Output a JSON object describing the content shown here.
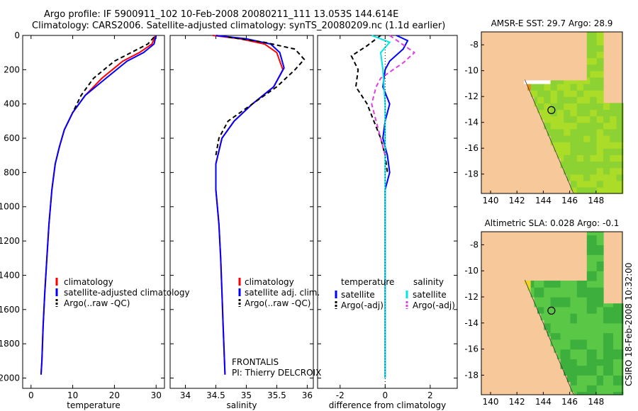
{
  "header": {
    "title_line1": "Argo profile: IF 5900911_102 10-Feb-2008 20080211_111 13.053S 144.614E",
    "title_line2": "Climatology: CARS2006. Satellite-adjusted climatology: synTS_20080209.nc (1.1d earlier)"
  },
  "credit": {
    "line1": "FRONTALIS",
    "line2": "PI: Thierry DELCROIX"
  },
  "stamp": "CSIRO 18-Feb-2008 10:32:00",
  "colors": {
    "climatology": "#ff0000",
    "satellite": "#0000ff",
    "argo": "#000000",
    "sal_satellite": "#00e5e5",
    "sal_argo": "#e040e0",
    "land": "#f7c99a"
  },
  "chart_data": [
    {
      "type": "line",
      "name": "temperature-profile",
      "xlabel": "temperature",
      "xlim": [
        -2,
        32
      ],
      "ylim": [
        2060,
        0
      ],
      "xticks": [
        "0",
        "10",
        "20",
        "30"
      ],
      "xtick_values": [
        0,
        10,
        20,
        30
      ],
      "yticks": [
        "0",
        "200",
        "400",
        "600",
        "800",
        "1000",
        "1200",
        "1400",
        "1600",
        "1800",
        "2000"
      ],
      "ytick_values": [
        0,
        200,
        400,
        600,
        800,
        1000,
        1200,
        1400,
        1600,
        1800,
        2000
      ],
      "legend": [
        "climatology",
        "satellite-adjusted climatology",
        "Argo(..raw -QC)"
      ],
      "series": [
        {
          "key": "climatology",
          "x": [
            29.8,
            29,
            26,
            22,
            17,
            13,
            10,
            8,
            6.8,
            5.8,
            5,
            4.3,
            3.8,
            3.3,
            2.9,
            2.6,
            2.4
          ],
          "y": [
            0,
            50,
            100,
            150,
            250,
            350,
            450,
            550,
            650,
            750,
            900,
            1100,
            1300,
            1500,
            1700,
            1900,
            1980
          ]
        },
        {
          "key": "satellite",
          "x": [
            30,
            29.5,
            27,
            23,
            18,
            13,
            10,
            8,
            6.8,
            5.8,
            5,
            4.3,
            3.8,
            3.3,
            2.9,
            2.6,
            2.4
          ],
          "y": [
            0,
            50,
            100,
            150,
            250,
            350,
            450,
            550,
            650,
            750,
            900,
            1100,
            1300,
            1500,
            1700,
            1900,
            1980
          ]
        },
        {
          "key": "argo",
          "x": [
            29.5,
            28,
            24,
            20,
            15,
            12,
            10
          ],
          "y": [
            10,
            50,
            100,
            150,
            250,
            350,
            450
          ]
        }
      ]
    },
    {
      "type": "line",
      "name": "salinity-profile",
      "xlabel": "salinity",
      "xlim": [
        33.75,
        36.1
      ],
      "ylim": [
        2060,
        0
      ],
      "xticks": [
        "34",
        "34.5",
        "35",
        "35.5",
        "36"
      ],
      "xtick_values": [
        34,
        34.5,
        35,
        35.5,
        36
      ],
      "legend": [
        "climatology",
        "satellite adj. clim.",
        "Argo(..raw -QC)"
      ],
      "series": [
        {
          "key": "climatology",
          "x": [
            34.45,
            34.9,
            35.3,
            35.5,
            35.6,
            35.45,
            35.1,
            34.8,
            34.6,
            34.5,
            34.5,
            34.55,
            34.58,
            34.6,
            34.62,
            34.65
          ],
          "y": [
            0,
            20,
            50,
            100,
            200,
            300,
            400,
            500,
            600,
            750,
            900,
            1100,
            1300,
            1500,
            1700,
            1980
          ]
        },
        {
          "key": "satellite",
          "x": [
            34.5,
            35.0,
            35.4,
            35.55,
            35.62,
            35.45,
            35.1,
            34.8,
            34.6,
            34.5,
            34.5,
            34.55,
            34.58,
            34.6,
            34.62,
            34.65
          ],
          "y": [
            0,
            20,
            50,
            100,
            190,
            300,
            400,
            500,
            600,
            750,
            900,
            1100,
            1300,
            1500,
            1700,
            1980
          ]
        },
        {
          "key": "argo",
          "x": [
            34.7,
            35.3,
            35.8,
            35.95,
            35.8,
            35.5,
            35.1,
            34.7,
            34.55,
            34.5
          ],
          "y": [
            10,
            40,
            80,
            140,
            200,
            300,
            400,
            500,
            600,
            700
          ]
        }
      ]
    },
    {
      "type": "line",
      "name": "difference-profile",
      "xlabel": "difference from climatology",
      "xlim": [
        -3,
        3.2
      ],
      "ylim": [
        2060,
        0
      ],
      "xticks": [
        "-2",
        "0",
        "2"
      ],
      "xtick_values": [
        -2,
        0,
        2
      ],
      "legend_left_header": "temperature",
      "legend_right_header": "salinity",
      "legend_left": [
        "satellite",
        "Argo(-adj)"
      ],
      "legend_right": [
        "satellite",
        "Argo(-adj)"
      ],
      "series": [
        {
          "key": "temp_satellite",
          "x": [
            0.5,
            1.0,
            0.8,
            0.2,
            0,
            -0.1,
            0.2,
            0,
            -0.1,
            0.1,
            0.2,
            0,
            0,
            0,
            0,
            0
          ],
          "y": [
            0,
            30,
            80,
            150,
            200,
            300,
            400,
            500,
            600,
            700,
            800,
            900,
            1000,
            1200,
            1600,
            2000
          ]
        },
        {
          "key": "temp_argo",
          "x": [
            -0.2,
            -0.8,
            -1.5,
            -1.2,
            -1.3,
            -0.8,
            -0.5,
            -0.2,
            0,
            0.1
          ],
          "y": [
            0,
            60,
            120,
            200,
            300,
            400,
            500,
            600,
            700,
            800
          ]
        },
        {
          "key": "sal_satellite",
          "x": [
            -0.6,
            0.2,
            -0.2,
            -0.1,
            0,
            0,
            0,
            0,
            0
          ],
          "y": [
            0,
            40,
            100,
            200,
            400,
            600,
            1000,
            1500,
            2000
          ]
        },
        {
          "key": "sal_argo",
          "x": [
            0.2,
            1.3,
            0.8,
            -0.2,
            -0.4,
            -0.6,
            -0.4,
            -0.2,
            0
          ],
          "y": [
            0,
            100,
            160,
            250,
            300,
            400,
            500,
            600,
            700
          ]
        }
      ]
    },
    {
      "type": "heatmap",
      "name": "amsr-sst-map",
      "title": "AMSR-E SST: 29.7 Argo: 28.9",
      "xlim": [
        139.3,
        150
      ],
      "ylim": [
        -19.5,
        -7
      ],
      "xticks": [
        "140",
        "142",
        "144",
        "146",
        "148"
      ],
      "xtick_values": [
        140,
        142,
        144,
        146,
        148
      ],
      "yticks": [
        "-8",
        "-10",
        "-12",
        "-14",
        "-16",
        "-18"
      ],
      "ytick_values": [
        -8,
        -10,
        -12,
        -14,
        -16,
        -18
      ],
      "argo_position": {
        "lon": 144.614,
        "lat": -13.053
      }
    },
    {
      "type": "heatmap",
      "name": "sla-map",
      "title": "Altimetric SLA: 0.028 Argo: -0.1",
      "xlim": [
        139.3,
        150
      ],
      "ylim": [
        -19.5,
        -7
      ],
      "xticks": [
        "140",
        "142",
        "144",
        "146",
        "148"
      ],
      "xtick_values": [
        140,
        142,
        144,
        146,
        148
      ],
      "yticks": [
        "-8",
        "-10",
        "-12",
        "-14",
        "-16",
        "-18"
      ],
      "ytick_values": [
        -8,
        -10,
        -12,
        -14,
        -16,
        -18
      ],
      "argo_position": {
        "lon": 144.614,
        "lat": -13.053
      }
    }
  ]
}
